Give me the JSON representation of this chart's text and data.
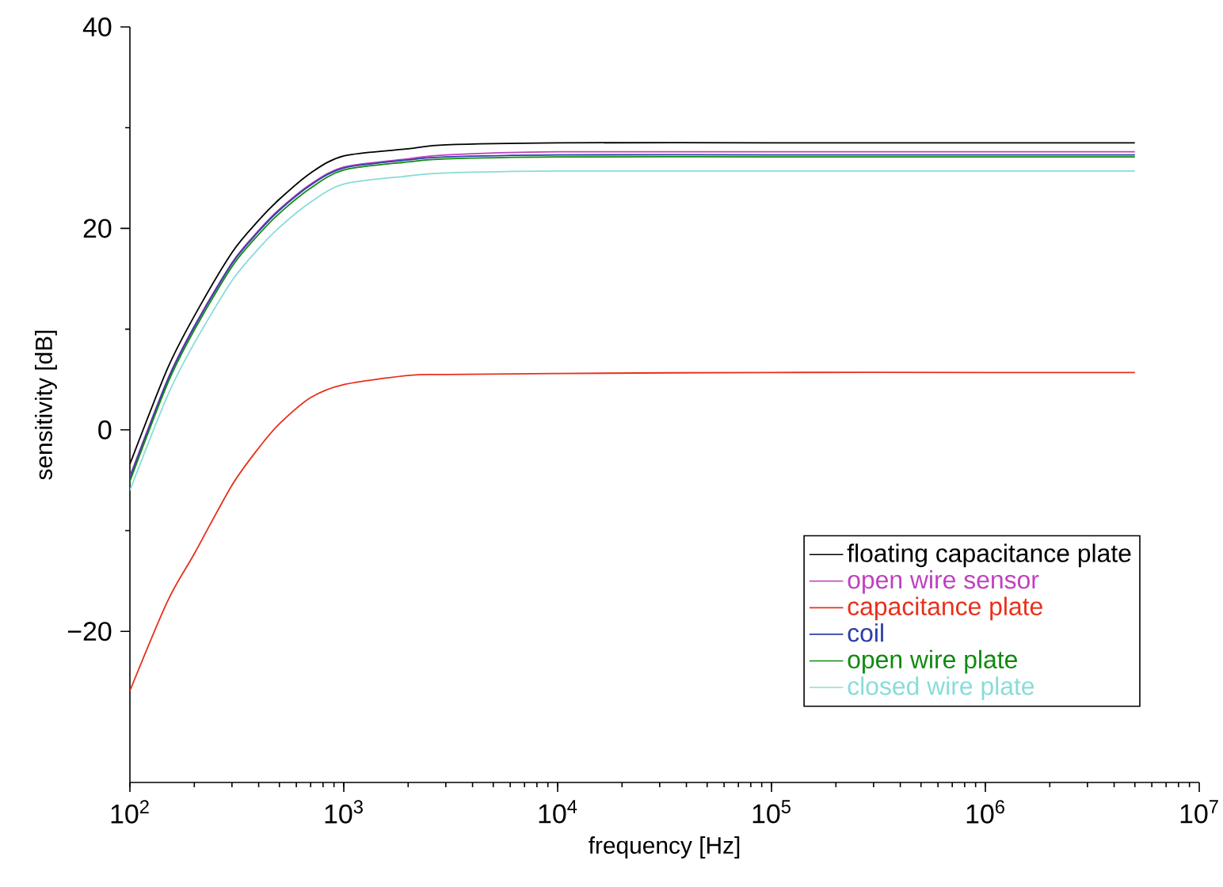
{
  "chart_data": {
    "type": "line",
    "xlabel": "frequency [Hz]",
    "ylabel": "sensitivity [dB]",
    "log": "x",
    "grid": false,
    "legend": "bottom right",
    "line_style": "solid",
    "marker": "none",
    "x": [
      100,
      150,
      200,
      300,
      400,
      500,
      700,
      1000,
      2000,
      3000,
      10000,
      100000,
      1000000,
      5000000
    ],
    "xlim": [
      100,
      10000000
    ],
    "xticks": [
      {
        "value": 100,
        "label": "10$^{2}$"
      },
      {
        "value": 1000,
        "label": "10$^{3}$"
      },
      {
        "value": 10000,
        "label": "10$^{4}$"
      },
      {
        "value": 100000,
        "label": "10$^{5}$"
      },
      {
        "value": 1000000,
        "label": "10$^{6}$"
      },
      {
        "value": 10000000,
        "label": "10$^{7}$"
      }
    ],
    "ylim": [
      -35,
      40
    ],
    "yticks": [
      {
        "value": -20,
        "label": "−20"
      },
      0,
      20,
      40
    ],
    "series": [
      {
        "name": "floating capacitance plate",
        "color": "#000000",
        "values": [
          -3.4,
          6.1,
          11.3,
          17.6,
          20.8,
          22.9,
          25.5,
          27.2,
          27.9,
          28.3,
          28.5,
          28.5,
          28.5,
          28.5
        ]
      },
      {
        "name": "open wire sensor",
        "color": "#c040c0",
        "values": [
          -4.6,
          5.0,
          10.3,
          16.6,
          19.8,
          21.9,
          24.4,
          26.1,
          26.9,
          27.3,
          27.6,
          27.6,
          27.6,
          27.6
        ]
      },
      {
        "name": "capacitance plate",
        "color": "#e8301c",
        "values": [
          -25.9,
          -17.0,
          -12.3,
          -5.5,
          -1.8,
          0.6,
          3.2,
          4.5,
          5.4,
          5.5,
          5.6,
          5.7,
          5.7,
          5.7
        ]
      },
      {
        "name": "coil",
        "color": "#2c3fa8",
        "values": [
          -4.8,
          4.9,
          10.2,
          16.5,
          19.7,
          21.8,
          24.3,
          26.0,
          26.8,
          27.1,
          27.3,
          27.3,
          27.3,
          27.3
        ]
      },
      {
        "name": "open wire plate",
        "color": "#108a10",
        "values": [
          -5.1,
          4.6,
          9.9,
          16.2,
          19.4,
          21.5,
          24.0,
          25.8,
          26.6,
          26.9,
          27.1,
          27.1,
          27.1,
          27.1
        ]
      },
      {
        "name": "closed wire plate",
        "color": "#88dcd8",
        "values": [
          -6.0,
          3.4,
          8.6,
          14.8,
          18.0,
          20.1,
          22.6,
          24.4,
          25.2,
          25.5,
          25.7,
          25.7,
          25.7,
          25.7
        ]
      }
    ]
  }
}
